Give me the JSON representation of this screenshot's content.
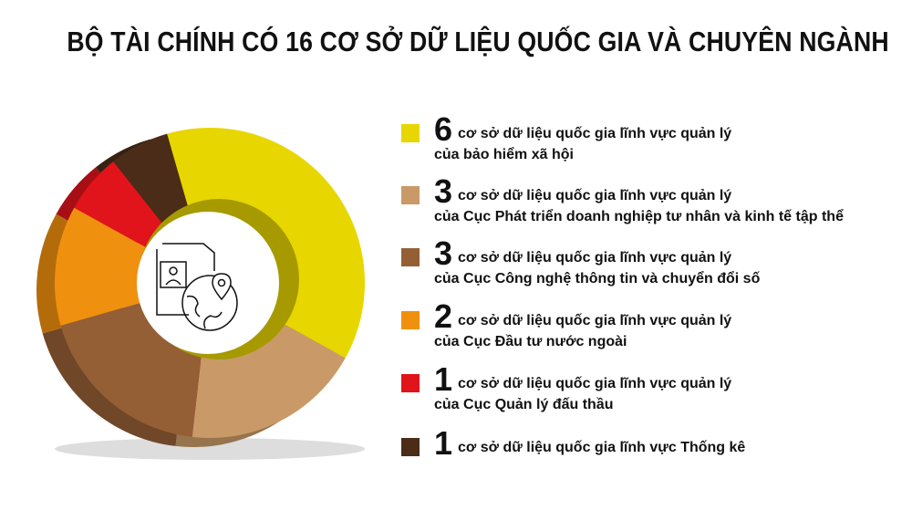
{
  "title": "BỘ TÀI CHÍNH CÓ 16 CƠ SỞ DỮ LIỆU QUỐC GIA VÀ CHUYÊN NGÀNH",
  "chart_data": {
    "type": "pie",
    "style": "3d-donut",
    "title": "BỘ TÀI CHÍNH CÓ 16 CƠ SỞ DỮ LIỆU QUỐC GIA VÀ CHUYÊN NGÀNH",
    "legend_position": "right",
    "center_icon": "document-globe-location-icon",
    "slices": [
      {
        "value": 6,
        "line1": "cơ sở dữ liệu quốc gia lĩnh vực quản lý",
        "line2": "của bảo hiểm xã hội",
        "color": "#E8D600"
      },
      {
        "value": 3,
        "line1": "cơ sở dữ liệu quốc gia lĩnh vực quản lý",
        "line2": "của Cục Phát triển doanh nghiệp tư nhân và kinh tế tập thể",
        "color": "#C99A68"
      },
      {
        "value": 3,
        "line1": "cơ sở dữ liệu quốc gia lĩnh vực quản lý",
        "line2": "của Cục Công nghệ thông tin và chuyển đổi số",
        "color": "#955F35"
      },
      {
        "value": 2,
        "line1": "cơ sở dữ liệu quốc gia lĩnh vực quản lý",
        "line2": "của Cục Đầu tư nước ngoài",
        "color": "#F0900F"
      },
      {
        "value": 1,
        "line1": "cơ sở dữ liệu quốc gia lĩnh vực quản lý",
        "line2": "của Cục Quản lý đấu thầu",
        "color": "#E0141A"
      },
      {
        "value": 1,
        "line1": "cơ sở dữ liệu quốc gia lĩnh vực Thống kê",
        "line2": "",
        "color": "#4A2C18"
      }
    ]
  }
}
